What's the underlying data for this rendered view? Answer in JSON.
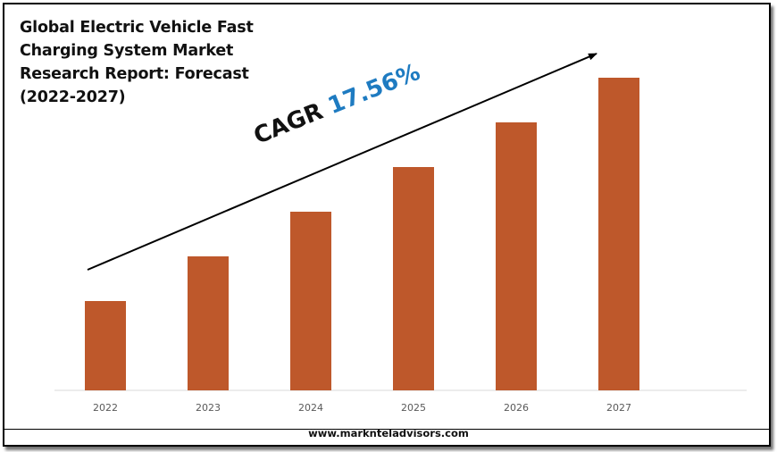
{
  "title_lines": [
    "Global Electric Vehicle Fast",
    "Charging System Market",
    "Research Report: Forecast",
    "(2022-2027)"
  ],
  "annotation": {
    "prefix": "CAGR",
    "value": "17.56%"
  },
  "footer": "www.marknteladvisors.com",
  "colors": {
    "bar": "#be582b",
    "cagr_value": "#1e7bc1",
    "axis": "#d9d9d9"
  },
  "chart_data": {
    "type": "bar",
    "title": "Global Electric Vehicle Fast Charging System Market Research Report: Forecast (2022-2027)",
    "categories": [
      "2022",
      "2023",
      "2024",
      "2025",
      "2026",
      "2027"
    ],
    "values": [
      1.0,
      1.5,
      2.0,
      2.5,
      3.0,
      3.5
    ],
    "xlabel": "",
    "ylabel": "",
    "grid": false,
    "annotations": [
      "CAGR 17.56%"
    ]
  }
}
